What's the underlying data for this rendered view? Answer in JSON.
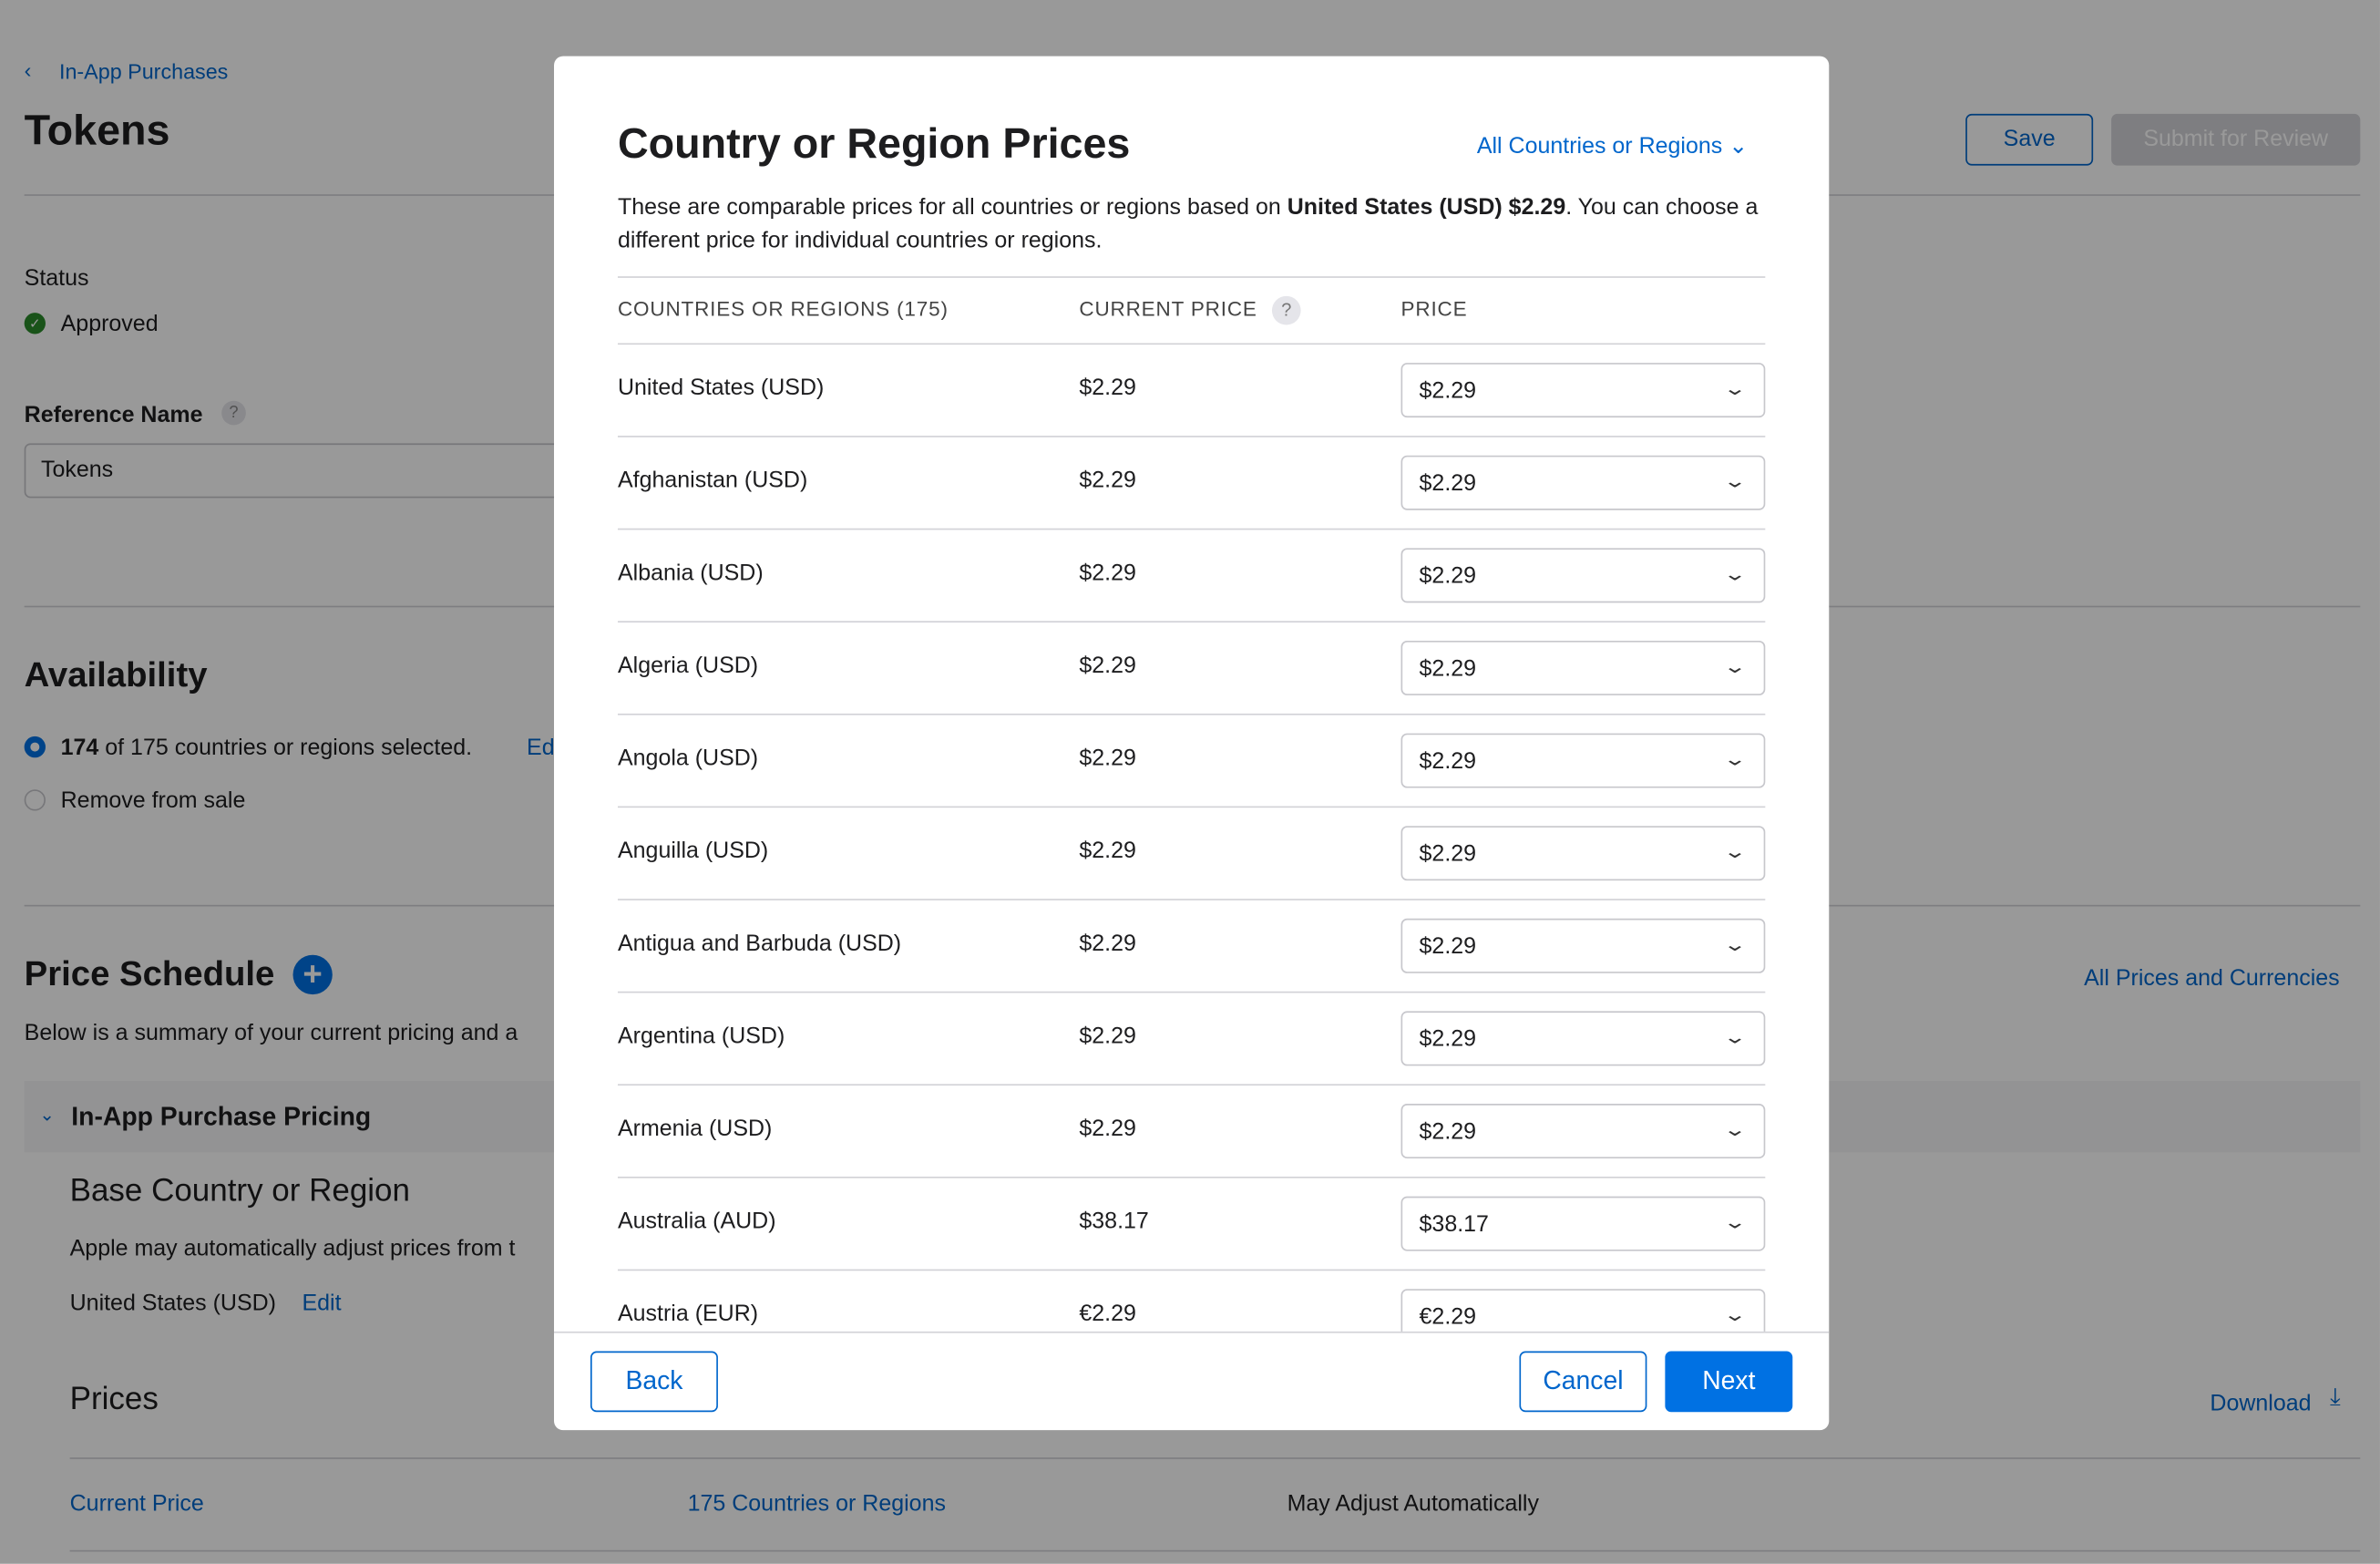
{
  "page": {
    "breadcrumb": "In-App Purchases",
    "title": "Tokens",
    "save": "Save",
    "submit": "Submit for Review",
    "status_label": "Status",
    "status_value": "Approved",
    "ref_label": "Reference Name",
    "ref_value": "Tokens",
    "availability_title": "Availability",
    "avail_count": "174",
    "avail_text": "of 175 countries or regions selected.",
    "avail_edit": "Edit",
    "remove": "Remove from sale",
    "price_schedule_title": "Price Schedule",
    "price_schedule_desc": "Below is a summary of your current pricing and a",
    "all_prices": "All Prices and Currencies",
    "iap_pricing": "In-App Purchase Pricing",
    "base_title": "Base Country or Region",
    "base_desc": "Apple may automatically adjust prices from t",
    "base_value": "United States (USD)",
    "base_edit": "Edit",
    "prices_title": "Prices",
    "download": "Download",
    "current_price": "Current Price",
    "countries_link": "175 Countries or Regions",
    "may_adjust": "May Adjust Automatically"
  },
  "modal": {
    "title": "Country or Region Prices",
    "filter": "All Countries or Regions",
    "desc_pre": "These are comparable prices for all countries or regions based on ",
    "desc_bold": "United States (USD) $2.29",
    "desc_post": ". You can choose a different price for individual countries or regions.",
    "col_country": "COUNTRIES OR REGIONS (175)",
    "col_current": "CURRENT PRICE",
    "col_price": "PRICE",
    "help": "?",
    "rows": [
      {
        "country": "United States (USD)",
        "current": "$2.29",
        "price": "$2.29"
      },
      {
        "country": "Afghanistan (USD)",
        "current": "$2.29",
        "price": "$2.29"
      },
      {
        "country": "Albania (USD)",
        "current": "$2.29",
        "price": "$2.29"
      },
      {
        "country": "Algeria (USD)",
        "current": "$2.29",
        "price": "$2.29"
      },
      {
        "country": "Angola (USD)",
        "current": "$2.29",
        "price": "$2.29"
      },
      {
        "country": "Anguilla (USD)",
        "current": "$2.29",
        "price": "$2.29"
      },
      {
        "country": "Antigua and Barbuda (USD)",
        "current": "$2.29",
        "price": "$2.29"
      },
      {
        "country": "Argentina (USD)",
        "current": "$2.29",
        "price": "$2.29"
      },
      {
        "country": "Armenia (USD)",
        "current": "$2.29",
        "price": "$2.29"
      },
      {
        "country": "Australia (AUD)",
        "current": "$38.17",
        "price": "$38.17"
      },
      {
        "country": "Austria (EUR)",
        "current": "€2.29",
        "price": "€2.29"
      }
    ],
    "back": "Back",
    "cancel": "Cancel",
    "next": "Next"
  }
}
